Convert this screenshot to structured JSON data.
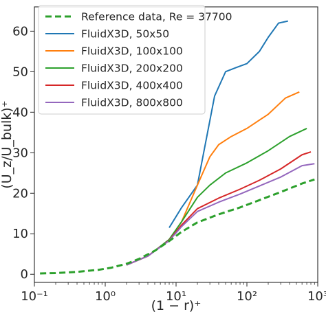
{
  "chart_data": {
    "type": "line",
    "xscale": "log",
    "xlim": [
      0.1,
      1000
    ],
    "ylim": [
      -2,
      66
    ],
    "xlabel": "(1 − r)⁺",
    "ylabel": "(U_z/U_bulk)⁺",
    "xticks": [
      0.1,
      1,
      10,
      100,
      1000
    ],
    "xtick_labels": [
      "10⁻¹",
      "10⁰",
      "10¹",
      "10²",
      "10³"
    ],
    "yticks": [
      0,
      10,
      20,
      30,
      40,
      50,
      60
    ],
    "ytick_labels": [
      "0",
      "10",
      "20",
      "30",
      "40",
      "50",
      "60"
    ],
    "grid": false,
    "legend_position": "upper left",
    "series": [
      {
        "name": "Reference data, Re = 37700",
        "color": "#2ca02c",
        "style": "dashed",
        "x": [
          0.12,
          0.2,
          0.4,
          0.8,
          1.2,
          2,
          3,
          5,
          8,
          12,
          20,
          40,
          80,
          150,
          300,
          600,
          900
        ],
        "y": [
          0.2,
          0.3,
          0.6,
          1.1,
          1.6,
          2.6,
          3.8,
          5.8,
          8.2,
          10.5,
          12.8,
          14.8,
          16.5,
          18.3,
          20.3,
          22.4,
          23.4
        ]
      },
      {
        "name": "FluidX3D, 50x50",
        "color": "#1f77b4",
        "style": "solid",
        "x": [
          8,
          12,
          20,
          35,
          50,
          70,
          100,
          150,
          200,
          280,
          380
        ],
        "y": [
          11.5,
          16.5,
          22,
          44,
          50,
          51,
          52,
          55,
          58.5,
          62,
          62.5
        ]
      },
      {
        "name": "FluidX3D, 100x100",
        "color": "#ff7f0e",
        "style": "solid",
        "x": [
          2,
          4,
          8,
          12,
          20,
          30,
          40,
          60,
          100,
          200,
          350,
          550
        ],
        "y": [
          2.3,
          4.5,
          8.5,
          13,
          22,
          29,
          32,
          34,
          36,
          39.5,
          43.5,
          45
        ]
      },
      {
        "name": "FluidX3D, 200x200",
        "color": "#2ca02c",
        "style": "solid",
        "x": [
          2,
          4,
          8,
          12,
          20,
          30,
          50,
          100,
          200,
          400,
          700
        ],
        "y": [
          2.3,
          4.5,
          8.6,
          13,
          19,
          22,
          25,
          27.5,
          30.5,
          34,
          36
        ]
      },
      {
        "name": "FluidX3D, 400x400",
        "color": "#d62728",
        "style": "solid",
        "x": [
          2,
          4,
          8,
          12,
          20,
          40,
          80,
          150,
          300,
          600,
          800
        ],
        "y": [
          2.3,
          4.5,
          8.4,
          12.2,
          16.2,
          18.8,
          21,
          23.2,
          26,
          29.5,
          30.2
        ]
      },
      {
        "name": "FluidX3D, 800x800",
        "color": "#9467bd",
        "style": "solid",
        "x": [
          2,
          4,
          8,
          12,
          20,
          40,
          80,
          150,
          300,
          600,
          900
        ],
        "y": [
          2.3,
          4.5,
          8.3,
          11.8,
          15.5,
          17.8,
          19.8,
          21.8,
          24,
          26.8,
          27.3
        ]
      }
    ]
  }
}
